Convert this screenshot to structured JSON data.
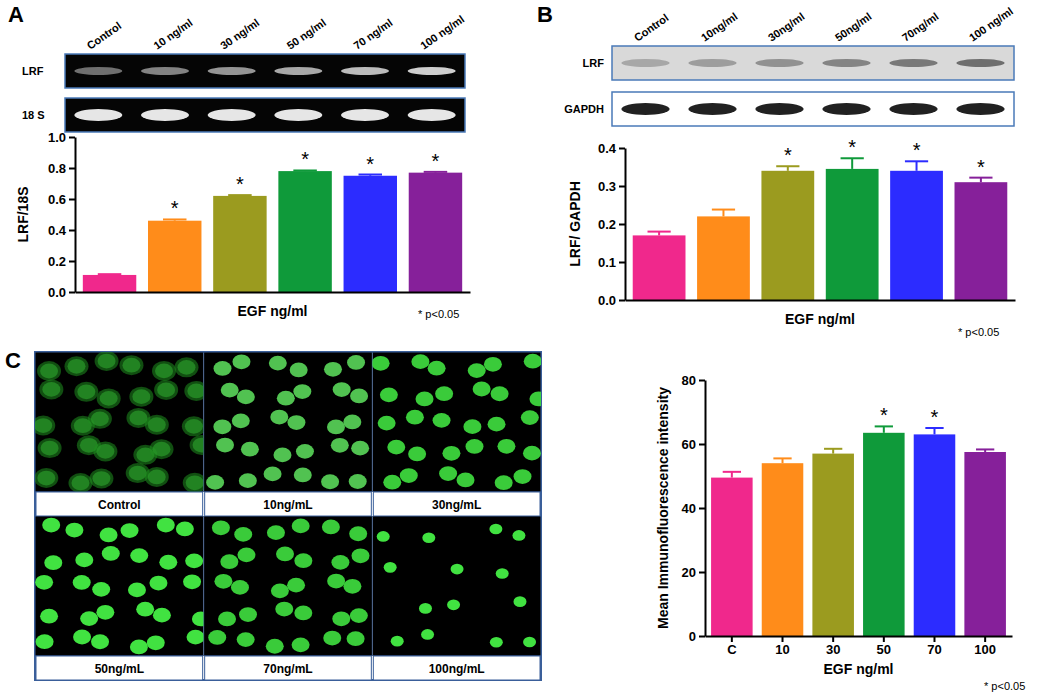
{
  "chart_data": [
    {
      "type": "bar",
      "panel": "A",
      "blot": {
        "rows": [
          "LRF",
          "18 S"
        ],
        "lanes": [
          "Control",
          "10 ng/ml",
          "30 ng/ml",
          "50 ng/ml",
          "70 ng/ml",
          "100 ng/ml"
        ]
      },
      "y_label": "LRF/18S",
      "x_label": "EGF ng/ml",
      "categories": [
        null,
        null,
        null,
        null,
        null,
        null
      ],
      "values": [
        0.11,
        0.46,
        0.62,
        0.78,
        0.75,
        0.77
      ],
      "errors": [
        0.005,
        0.008,
        0.005,
        0.004,
        0.008,
        0.005
      ],
      "stars": [
        null,
        "*",
        "*",
        "*",
        "*",
        "*"
      ],
      "colors": [
        "#f0288c",
        "#ff8c1a",
        "#9b9b1f",
        "#0f9a3a",
        "#2c2cff",
        "#86209a"
      ],
      "ylim": [
        0,
        1.0
      ],
      "yticks": [
        {
          "value": 0,
          "label": "0.0"
        },
        {
          "value": 0.2,
          "label": "0.2"
        },
        {
          "value": 0.4,
          "label": "0.4"
        },
        {
          "value": 0.6,
          "label": "0.6"
        },
        {
          "value": 0.8,
          "label": "0.8"
        },
        {
          "value": 1.0,
          "label": "1.0"
        }
      ],
      "tick_labels": "y",
      "annotation": "* p<0.05"
    },
    {
      "type": "bar",
      "panel": "B",
      "blot": {
        "rows": [
          "LRF",
          "GAPDH"
        ],
        "lanes": [
          "Control",
          "10ng/ml",
          "30ng/ml",
          "50ng/ml",
          "70ng/ml",
          "100 ng/ml"
        ]
      },
      "y_label": "LRF/ GAPDH",
      "x_label": "EGF ng/ml",
      "categories": [
        null,
        null,
        null,
        null,
        null,
        null
      ],
      "values": [
        0.17,
        0.22,
        0.34,
        0.345,
        0.34,
        0.31
      ],
      "errors": [
        0.01,
        0.018,
        0.012,
        0.028,
        0.025,
        0.012
      ],
      "stars": [
        null,
        null,
        "*",
        "*",
        "*",
        "*"
      ],
      "colors": [
        "#f0288c",
        "#ff8c1a",
        "#9b9b1f",
        "#0f9a3a",
        "#2c2cff",
        "#86209a"
      ],
      "ylim": [
        0,
        0.4
      ],
      "yticks": [
        {
          "value": 0,
          "label": "0.0"
        },
        0.1,
        0.2,
        0.3,
        0.4
      ],
      "tick_labels": "y",
      "annotation": "* p<0.05"
    },
    {
      "type": "bar",
      "panel": "C",
      "images": {
        "labels": [
          "Control",
          "10ng/mL",
          "30ng/mL",
          "50ng/mL",
          "70ng/mL",
          "100ng/mL"
        ]
      },
      "y_label": "Mean Immunofluorescence intensity",
      "x_label": "EGF ng/ml",
      "categories": [
        "C",
        "10",
        "30",
        "50",
        "70",
        "100"
      ],
      "values": [
        49.5,
        54,
        57,
        63.5,
        63,
        57.5
      ],
      "errors": [
        1.8,
        1.5,
        1.5,
        2,
        2,
        0.8
      ],
      "stars": [
        null,
        null,
        null,
        "*",
        "*",
        null
      ],
      "colors": [
        "#f0288c",
        "#ff8c1a",
        "#9b9b1f",
        "#0f9a3a",
        "#2c2cff",
        "#86209a"
      ],
      "ylim": [
        0,
        80
      ],
      "yticks": [
        0,
        20,
        40,
        60,
        80
      ],
      "annotation": "* p<0.05"
    }
  ]
}
